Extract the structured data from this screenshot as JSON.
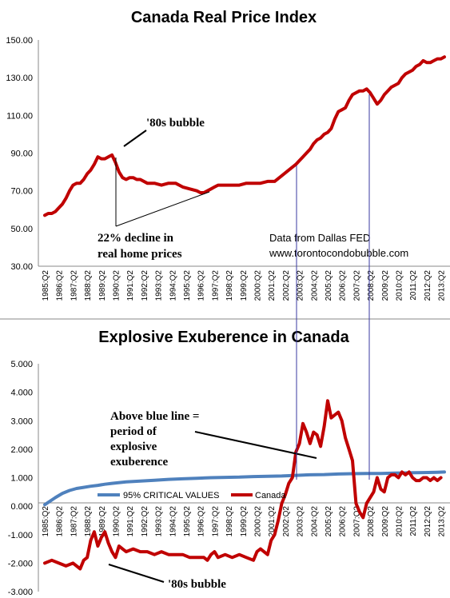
{
  "chart_data": [
    {
      "type": "line",
      "title": "Canada Real Price Index",
      "ylim": [
        30,
        150
      ],
      "yticks": [
        "30.00",
        "50.00",
        "70.00",
        "90.00",
        "110.00",
        "130.00",
        "150.00"
      ],
      "categories": [
        "1985:Q2",
        "1986:Q2",
        "1987:Q2",
        "1988:Q2",
        "1989:Q2",
        "1990:Q2",
        "1991:Q2",
        "1992:Q2",
        "1993:Q2",
        "1994:Q2",
        "1995:Q2",
        "1996:Q2",
        "1997:Q2",
        "1998:Q2",
        "1999:Q2",
        "2000:Q2",
        "2001:Q2",
        "2002:Q2",
        "2003:Q2",
        "2004:Q2",
        "2005:Q2",
        "2006:Q2",
        "2007:Q2",
        "2008:Q2",
        "2009:Q2",
        "2010:Q2",
        "2011:Q2",
        "2012:Q2",
        "2013:Q2"
      ],
      "series": [
        {
          "name": "Canada",
          "color": "#c00000",
          "x": [
            1985.25,
            1985.5,
            1985.75,
            1986.0,
            1986.25,
            1986.5,
            1986.75,
            1987.0,
            1987.25,
            1987.5,
            1987.75,
            1988.0,
            1988.25,
            1988.5,
            1988.75,
            1989.0,
            1989.25,
            1989.5,
            1989.75,
            1990.0,
            1990.25,
            1990.5,
            1990.75,
            1991.0,
            1991.25,
            1991.5,
            1991.75,
            1992.0,
            1992.5,
            1993.0,
            1993.5,
            1994.0,
            1994.5,
            1995.0,
            1995.5,
            1996.0,
            1996.25,
            1996.5,
            1996.75,
            1997.0,
            1997.25,
            1997.5,
            1998.0,
            1998.5,
            1999.0,
            1999.5,
            2000.0,
            2000.5,
            2001.0,
            2001.5,
            2002.0,
            2002.5,
            2003.0,
            2003.25,
            2003.5,
            2003.75,
            2004.0,
            2004.25,
            2004.5,
            2004.75,
            2005.0,
            2005.25,
            2005.5,
            2005.75,
            2006.0,
            2006.25,
            2006.5,
            2006.75,
            2007.0,
            2007.25,
            2007.5,
            2007.75,
            2008.0,
            2008.25,
            2008.5,
            2008.75,
            2009.0,
            2009.25,
            2009.5,
            2009.75,
            2010.0,
            2010.25,
            2010.5,
            2010.75,
            2011.0,
            2011.25,
            2011.5,
            2011.75,
            2012.0,
            2012.25,
            2012.5,
            2012.75,
            2013.0,
            2013.25,
            2013.5
          ],
          "values": [
            57,
            58,
            58,
            59,
            61,
            63,
            66,
            70,
            73,
            74,
            74,
            76,
            79,
            81,
            84,
            88,
            87,
            87,
            88,
            89,
            85,
            80,
            77,
            76,
            77,
            77,
            76,
            76,
            74,
            74,
            73,
            74,
            74,
            72,
            71,
            70,
            69,
            69,
            70,
            71,
            72,
            73,
            73,
            73,
            73,
            74,
            74,
            74,
            75,
            75,
            78,
            81,
            84,
            86,
            88,
            90,
            92,
            95,
            97,
            98,
            100,
            101,
            103,
            108,
            112,
            113,
            114,
            118,
            121,
            122,
            123,
            123,
            124,
            122,
            119,
            116,
            118,
            121,
            123,
            125,
            126,
            127,
            130,
            132,
            133,
            134,
            136,
            137,
            139,
            138,
            138,
            139,
            140,
            140,
            141
          ]
        }
      ],
      "annotations": [
        {
          "text": "'80s bubble"
        },
        {
          "text": "22% decline in"
        },
        {
          "text": "real home prices"
        },
        {
          "text": "Data from Dallas FED"
        },
        {
          "text": "www.torontocondobubble.com"
        }
      ]
    },
    {
      "type": "line",
      "title": "Explosive Exuberence in Canada",
      "ylim": [
        -3,
        5
      ],
      "yticks": [
        "-3.000",
        "-2.000",
        "-1.000",
        "0.000",
        "1.000",
        "2.000",
        "3.000",
        "4.000",
        "5.000"
      ],
      "categories": [
        "1985:Q2",
        "1986:Q2",
        "1987:Q2",
        "1988:Q2",
        "1989:Q2",
        "1990:Q2",
        "1991:Q2",
        "1992:Q2",
        "1993:Q2",
        "1994:Q2",
        "1995:Q2",
        "1996:Q2",
        "1997:Q2",
        "1998:Q2",
        "1999:Q2",
        "2000:Q2",
        "2001:Q2",
        "2002:Q2",
        "2003:Q2",
        "2004:Q2",
        "2005:Q2",
        "2006:Q2",
        "2007:Q2",
        "2008:Q2",
        "2009:Q2",
        "2010:Q2",
        "2011:Q2",
        "2012:Q2",
        "2013:Q2"
      ],
      "legend": [
        "95% CRITICAL VALUES",
        "Canada"
      ],
      "series": [
        {
          "name": "95% CRITICAL VALUES",
          "color": "#4f81bd",
          "x": [
            1985.25,
            1986.0,
            1986.5,
            1987.0,
            1987.5,
            1988.0,
            1988.5,
            1989.0,
            1989.5,
            1990.0,
            1991.0,
            1992.0,
            1993.0,
            1994.0,
            1995.0,
            1996.0,
            1997.0,
            1998.0,
            1999.0,
            2000.0,
            2001.0,
            2002.0,
            2003.0,
            2004.0,
            2005.0,
            2006.0,
            2007.0,
            2008.0,
            2009.0,
            2010.0,
            2011.0,
            2012.0,
            2013.0,
            2013.5
          ],
          "values": [
            0.05,
            0.3,
            0.45,
            0.55,
            0.62,
            0.66,
            0.7,
            0.73,
            0.77,
            0.8,
            0.85,
            0.88,
            0.91,
            0.94,
            0.96,
            0.98,
            1.0,
            1.01,
            1.02,
            1.04,
            1.05,
            1.06,
            1.08,
            1.1,
            1.11,
            1.13,
            1.14,
            1.15,
            1.15,
            1.16,
            1.17,
            1.18,
            1.19,
            1.2
          ]
        },
        {
          "name": "Canada",
          "color": "#c00000",
          "x": [
            1985.25,
            1985.75,
            1986.25,
            1986.75,
            1987.25,
            1987.75,
            1988.0,
            1988.25,
            1988.5,
            1988.75,
            1989.0,
            1989.25,
            1989.5,
            1989.75,
            1990.0,
            1990.25,
            1990.5,
            1990.75,
            1991.0,
            1991.5,
            1992.0,
            1992.5,
            1993.0,
            1993.5,
            1994.0,
            1994.5,
            1995.0,
            1995.5,
            1996.0,
            1996.5,
            1996.75,
            1997.0,
            1997.25,
            1997.5,
            1998.0,
            1998.5,
            1999.0,
            1999.5,
            2000.0,
            2000.25,
            2000.5,
            2001.0,
            2001.25,
            2001.5,
            2001.75,
            2002.0,
            2002.25,
            2002.5,
            2002.75,
            2003.0,
            2003.25,
            2003.5,
            2003.75,
            2004.0,
            2004.25,
            2004.5,
            2004.75,
            2005.0,
            2005.25,
            2005.5,
            2005.75,
            2006.0,
            2006.25,
            2006.5,
            2006.75,
            2007.0,
            2007.25,
            2007.5,
            2007.75,
            2008.0,
            2008.25,
            2008.5,
            2008.75,
            2009.0,
            2009.25,
            2009.5,
            2009.75,
            2010.0,
            2010.25,
            2010.5,
            2010.75,
            2011.0,
            2011.25,
            2011.5,
            2011.75,
            2012.0,
            2012.25,
            2012.5,
            2012.75,
            2013.0,
            2013.25
          ],
          "values": [
            -2.0,
            -1.9,
            -2.0,
            -2.1,
            -2.0,
            -2.2,
            -1.9,
            -1.8,
            -1.2,
            -0.9,
            -1.4,
            -1.1,
            -0.9,
            -1.3,
            -1.6,
            -1.8,
            -1.4,
            -1.5,
            -1.6,
            -1.5,
            -1.6,
            -1.6,
            -1.7,
            -1.6,
            -1.7,
            -1.7,
            -1.7,
            -1.8,
            -1.8,
            -1.8,
            -1.9,
            -1.7,
            -1.6,
            -1.8,
            -1.7,
            -1.8,
            -1.7,
            -1.8,
            -1.9,
            -1.6,
            -1.5,
            -1.7,
            -1.2,
            -1.0,
            -0.5,
            0.1,
            0.4,
            0.8,
            1.0,
            1.9,
            2.2,
            2.9,
            2.6,
            2.2,
            2.6,
            2.5,
            2.1,
            2.8,
            3.7,
            3.1,
            3.2,
            3.3,
            3.0,
            2.4,
            2.0,
            1.6,
            0.1,
            -0.2,
            -0.4,
            0.1,
            0.3,
            0.5,
            1.0,
            0.6,
            0.5,
            1.0,
            1.1,
            1.1,
            1.0,
            1.2,
            1.1,
            1.2,
            1.0,
            0.9,
            0.9,
            1.0,
            1.0,
            0.9,
            1.0,
            0.9,
            1.0
          ]
        }
      ],
      "annotations": [
        {
          "text": "Above blue line ="
        },
        {
          "text": "period of"
        },
        {
          "text": "explosive"
        },
        {
          "text": "exuberence"
        },
        {
          "text": "'80s bubble"
        }
      ]
    }
  ]
}
